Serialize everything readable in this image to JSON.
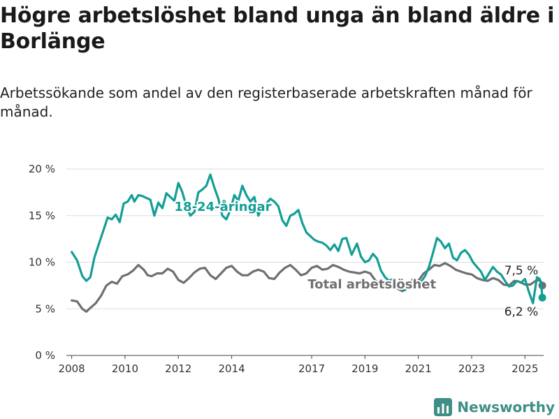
{
  "title": "Högre arbetslöshet bland unga än bland äldre i Borlänge",
  "subtitle": "Arbetssökande som andel av den registerbaserade arbetskraften månad för månad.",
  "brand": "Newsworthy",
  "colors": {
    "youth": "#139e95",
    "total": "#6f6f73",
    "grid": "#dddddd",
    "brand": "#3f8f86"
  },
  "chart_data": {
    "type": "line",
    "xlim": [
      2007.8,
      2025.7
    ],
    "ylim": [
      0,
      20
    ],
    "x_ticks": [
      2008,
      2010,
      2012,
      2014,
      2017,
      2019,
      2021,
      2023,
      2025
    ],
    "y_ticks": [
      {
        "value": 0,
        "label": "0 %"
      },
      {
        "value": 5,
        "label": "5 %"
      },
      {
        "value": 10,
        "label": "10 %"
      },
      {
        "value": 15,
        "label": "15 %"
      },
      {
        "value": 20,
        "label": "20 %"
      }
    ],
    "series": [
      {
        "name": "18-24-åringar",
        "color": "#139e95",
        "end_label": "6,2 %",
        "points": [
          [
            2008.0,
            11.1
          ],
          [
            2008.2,
            10.2
          ],
          [
            2008.4,
            8.5
          ],
          [
            2008.55,
            8.0
          ],
          [
            2008.7,
            8.4
          ],
          [
            2008.85,
            10.5
          ],
          [
            2009.0,
            11.8
          ],
          [
            2009.2,
            13.5
          ],
          [
            2009.35,
            14.8
          ],
          [
            2009.5,
            14.6
          ],
          [
            2009.65,
            15.1
          ],
          [
            2009.8,
            14.3
          ],
          [
            2009.95,
            16.3
          ],
          [
            2010.1,
            16.5
          ],
          [
            2010.25,
            17.2
          ],
          [
            2010.35,
            16.5
          ],
          [
            2010.5,
            17.2
          ],
          [
            2010.65,
            17.1
          ],
          [
            2010.8,
            16.9
          ],
          [
            2010.95,
            16.7
          ],
          [
            2011.1,
            15.0
          ],
          [
            2011.25,
            16.4
          ],
          [
            2011.4,
            15.8
          ],
          [
            2011.55,
            17.4
          ],
          [
            2011.7,
            17.0
          ],
          [
            2011.85,
            16.6
          ],
          [
            2012.0,
            18.5
          ],
          [
            2012.15,
            17.5
          ],
          [
            2012.3,
            16.0
          ],
          [
            2012.45,
            15.0
          ],
          [
            2012.6,
            15.4
          ],
          [
            2012.75,
            17.5
          ],
          [
            2012.9,
            17.8
          ],
          [
            2013.05,
            18.2
          ],
          [
            2013.2,
            19.4
          ],
          [
            2013.35,
            18.0
          ],
          [
            2013.5,
            16.8
          ],
          [
            2013.65,
            15.0
          ],
          [
            2013.8,
            14.6
          ],
          [
            2013.95,
            15.6
          ],
          [
            2014.1,
            17.2
          ],
          [
            2014.25,
            16.6
          ],
          [
            2014.4,
            18.2
          ],
          [
            2014.55,
            17.2
          ],
          [
            2014.7,
            16.5
          ],
          [
            2014.85,
            17.0
          ],
          [
            2015.0,
            15.0
          ],
          [
            2015.15,
            16.0
          ],
          [
            2015.3,
            16.3
          ],
          [
            2015.45,
            16.8
          ],
          [
            2015.6,
            16.5
          ],
          [
            2015.75,
            16.0
          ],
          [
            2015.9,
            14.5
          ],
          [
            2016.05,
            13.9
          ],
          [
            2016.2,
            15.0
          ],
          [
            2016.35,
            15.2
          ],
          [
            2016.5,
            15.6
          ],
          [
            2016.65,
            14.2
          ],
          [
            2016.8,
            13.2
          ],
          [
            2016.95,
            12.8
          ],
          [
            2017.1,
            12.4
          ],
          [
            2017.25,
            12.2
          ],
          [
            2017.4,
            12.1
          ],
          [
            2017.55,
            11.8
          ],
          [
            2017.7,
            11.3
          ],
          [
            2017.85,
            11.9
          ],
          [
            2018.0,
            11.2
          ],
          [
            2018.15,
            12.5
          ],
          [
            2018.3,
            12.6
          ],
          [
            2018.5,
            10.8
          ],
          [
            2018.7,
            12.0
          ],
          [
            2018.85,
            10.6
          ],
          [
            2019.0,
            10.0
          ],
          [
            2019.15,
            10.2
          ],
          [
            2019.3,
            10.9
          ],
          [
            2019.45,
            10.4
          ],
          [
            2019.6,
            9.1
          ],
          [
            2019.75,
            8.4
          ],
          [
            2019.9,
            8.0
          ],
          [
            2020.05,
            8.2
          ],
          [
            2020.2,
            7.4
          ],
          [
            2020.35,
            7.2
          ],
          [
            2020.5,
            7.0
          ],
          [
            2020.65,
            7.5
          ],
          [
            2020.8,
            8.2
          ],
          [
            2020.95,
            8.0
          ],
          [
            2021.1,
            7.9
          ],
          [
            2021.25,
            8.5
          ],
          [
            2021.4,
            9.5
          ],
          [
            2021.55,
            11.0
          ],
          [
            2021.7,
            12.6
          ],
          [
            2021.85,
            12.2
          ],
          [
            2022.0,
            11.5
          ],
          [
            2022.15,
            12.0
          ],
          [
            2022.3,
            10.5
          ],
          [
            2022.45,
            10.2
          ],
          [
            2022.6,
            11.0
          ],
          [
            2022.75,
            11.3
          ],
          [
            2022.9,
            10.8
          ],
          [
            2023.05,
            10.0
          ],
          [
            2023.2,
            9.5
          ],
          [
            2023.35,
            9.0
          ],
          [
            2023.5,
            8.1
          ],
          [
            2023.65,
            8.8
          ],
          [
            2023.8,
            9.5
          ],
          [
            2023.95,
            9.0
          ],
          [
            2024.1,
            8.7
          ],
          [
            2024.25,
            8.0
          ],
          [
            2024.4,
            7.4
          ],
          [
            2024.55,
            7.5
          ],
          [
            2024.7,
            8.0
          ],
          [
            2024.85,
            7.8
          ],
          [
            2025.0,
            8.2
          ],
          [
            2025.15,
            6.8
          ],
          [
            2025.3,
            5.6
          ],
          [
            2025.45,
            8.4
          ],
          [
            2025.55,
            8.2
          ],
          [
            2025.6,
            7.9
          ],
          [
            2025.65,
            6.2
          ]
        ]
      },
      {
        "name": "Total arbetslöshet",
        "color": "#6f6f73",
        "end_label": "7,5 %",
        "points": [
          [
            2008.0,
            5.9
          ],
          [
            2008.2,
            5.8
          ],
          [
            2008.4,
            5.0
          ],
          [
            2008.55,
            4.7
          ],
          [
            2008.7,
            5.1
          ],
          [
            2008.9,
            5.6
          ],
          [
            2009.1,
            6.4
          ],
          [
            2009.3,
            7.5
          ],
          [
            2009.5,
            7.9
          ],
          [
            2009.7,
            7.7
          ],
          [
            2009.9,
            8.5
          ],
          [
            2010.1,
            8.7
          ],
          [
            2010.3,
            9.1
          ],
          [
            2010.5,
            9.7
          ],
          [
            2010.7,
            9.2
          ],
          [
            2010.85,
            8.6
          ],
          [
            2011.0,
            8.5
          ],
          [
            2011.2,
            8.8
          ],
          [
            2011.4,
            8.8
          ],
          [
            2011.6,
            9.3
          ],
          [
            2011.8,
            9.0
          ],
          [
            2012.0,
            8.1
          ],
          [
            2012.2,
            7.8
          ],
          [
            2012.4,
            8.3
          ],
          [
            2012.6,
            8.9
          ],
          [
            2012.8,
            9.3
          ],
          [
            2013.0,
            9.4
          ],
          [
            2013.2,
            8.6
          ],
          [
            2013.4,
            8.2
          ],
          [
            2013.6,
            8.8
          ],
          [
            2013.8,
            9.4
          ],
          [
            2014.0,
            9.6
          ],
          [
            2014.2,
            9.0
          ],
          [
            2014.4,
            8.6
          ],
          [
            2014.6,
            8.6
          ],
          [
            2014.8,
            9.0
          ],
          [
            2015.0,
            9.2
          ],
          [
            2015.2,
            9.0
          ],
          [
            2015.4,
            8.3
          ],
          [
            2015.6,
            8.2
          ],
          [
            2015.8,
            8.9
          ],
          [
            2016.0,
            9.4
          ],
          [
            2016.2,
            9.7
          ],
          [
            2016.4,
            9.2
          ],
          [
            2016.6,
            8.6
          ],
          [
            2016.8,
            8.8
          ],
          [
            2017.0,
            9.4
          ],
          [
            2017.2,
            9.6
          ],
          [
            2017.4,
            9.2
          ],
          [
            2017.6,
            9.3
          ],
          [
            2017.8,
            9.7
          ],
          [
            2018.0,
            9.5
          ],
          [
            2018.2,
            9.2
          ],
          [
            2018.4,
            9.0
          ],
          [
            2018.6,
            8.9
          ],
          [
            2018.8,
            8.8
          ],
          [
            2019.0,
            9.0
          ],
          [
            2019.2,
            8.8
          ],
          [
            2019.4,
            8.0
          ],
          [
            2019.6,
            7.8
          ],
          [
            2019.8,
            7.5
          ],
          [
            2020.0,
            7.4
          ],
          [
            2020.2,
            7.2
          ],
          [
            2020.4,
            6.9
          ],
          [
            2020.6,
            7.3
          ],
          [
            2020.8,
            7.4
          ],
          [
            2021.0,
            8.0
          ],
          [
            2021.2,
            8.8
          ],
          [
            2021.4,
            9.2
          ],
          [
            2021.6,
            9.7
          ],
          [
            2021.8,
            9.6
          ],
          [
            2022.0,
            9.9
          ],
          [
            2022.2,
            9.6
          ],
          [
            2022.4,
            9.2
          ],
          [
            2022.6,
            9.0
          ],
          [
            2022.8,
            8.8
          ],
          [
            2023.0,
            8.7
          ],
          [
            2023.2,
            8.3
          ],
          [
            2023.4,
            8.1
          ],
          [
            2023.6,
            8.0
          ],
          [
            2023.8,
            8.3
          ],
          [
            2024.0,
            8.1
          ],
          [
            2024.2,
            7.6
          ],
          [
            2024.4,
            7.5
          ],
          [
            2024.6,
            8.0
          ],
          [
            2024.8,
            7.9
          ],
          [
            2025.0,
            7.6
          ],
          [
            2025.2,
            7.6
          ],
          [
            2025.4,
            8.0
          ],
          [
            2025.55,
            8.1
          ],
          [
            2025.65,
            7.5
          ]
        ]
      }
    ]
  }
}
